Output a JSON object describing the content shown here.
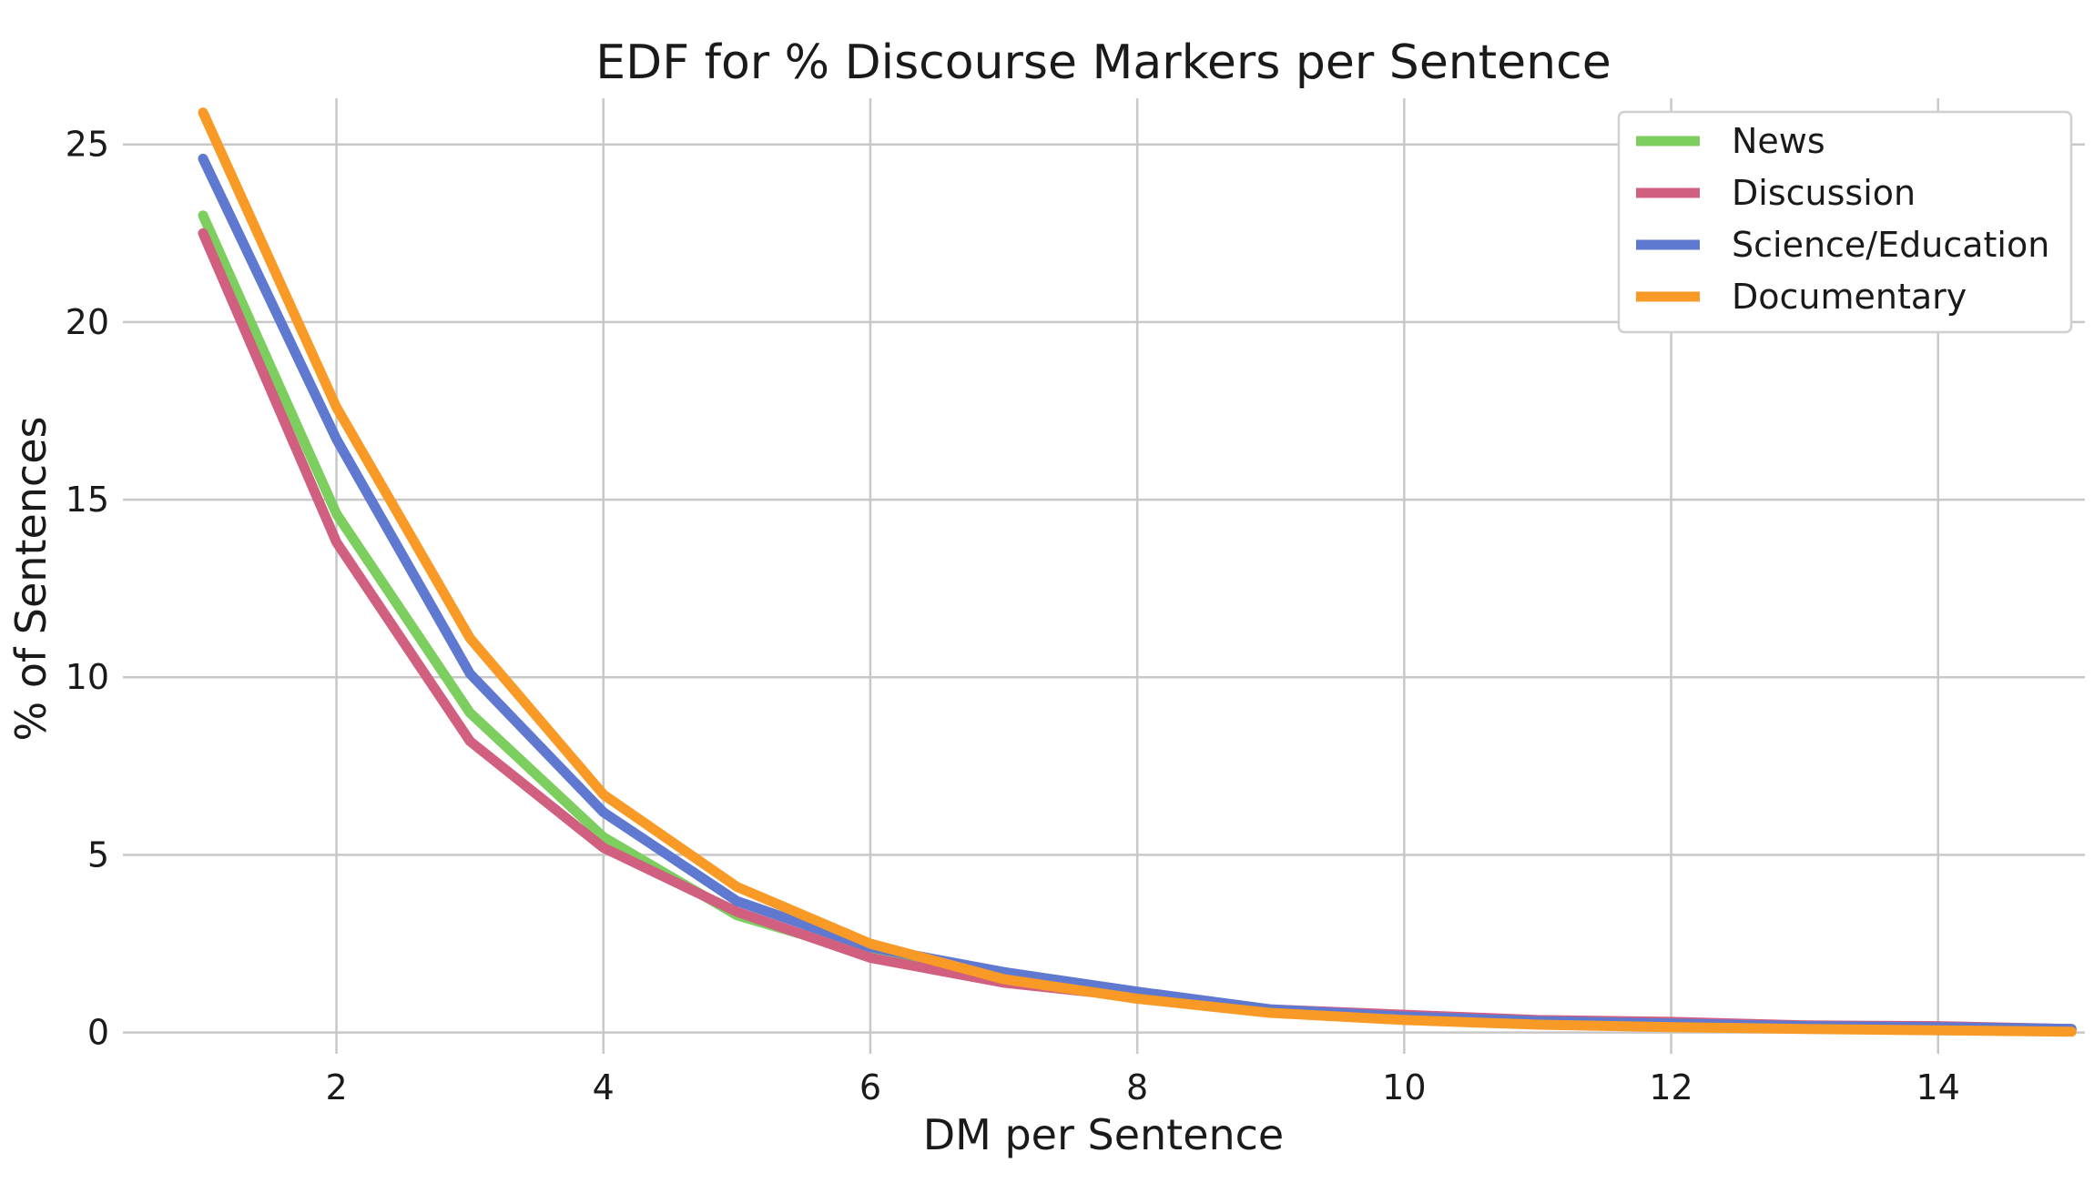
{
  "chart_data": {
    "type": "line",
    "title": "EDF for % Discourse Markers per Sentence",
    "xlabel": "DM per Sentence",
    "ylabel": "% of Sentences",
    "xlim": [
      0.4,
      15.1
    ],
    "ylim": [
      -0.6,
      26.3
    ],
    "xticks": [
      2,
      4,
      6,
      8,
      10,
      12,
      14
    ],
    "yticks": [
      0,
      5,
      10,
      15,
      20,
      25
    ],
    "grid": true,
    "legend_position": "top-right",
    "x": [
      1,
      2,
      3,
      4,
      5,
      6,
      7,
      8,
      9,
      10,
      11,
      12,
      13,
      14,
      15
    ],
    "series": [
      {
        "name": "News",
        "color": "#7ccf5f",
        "values": [
          23.0,
          14.6,
          9.0,
          5.5,
          3.3,
          2.2,
          1.5,
          1.0,
          0.6,
          0.45,
          0.3,
          0.25,
          0.15,
          0.12,
          0.05
        ]
      },
      {
        "name": "Discussion",
        "color": "#d05f80",
        "values": [
          22.5,
          13.8,
          8.2,
          5.2,
          3.4,
          2.1,
          1.4,
          1.0,
          0.65,
          0.5,
          0.35,
          0.3,
          0.2,
          0.18,
          0.1
        ]
      },
      {
        "name": "Science/Education",
        "color": "#5f78d0",
        "values": [
          24.6,
          16.7,
          10.1,
          6.2,
          3.7,
          2.4,
          1.7,
          1.15,
          0.65,
          0.45,
          0.32,
          0.25,
          0.18,
          0.15,
          0.1
        ]
      },
      {
        "name": "Documentary",
        "color": "#f99a26",
        "values": [
          25.9,
          17.6,
          11.1,
          6.7,
          4.1,
          2.5,
          1.5,
          0.95,
          0.55,
          0.35,
          0.22,
          0.15,
          0.1,
          0.06,
          0.02
        ]
      }
    ]
  }
}
